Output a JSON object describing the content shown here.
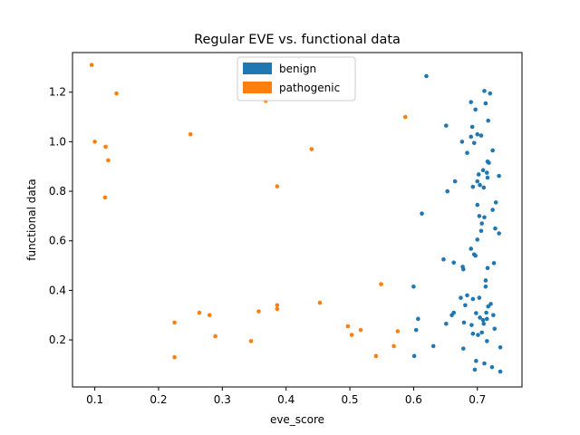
{
  "chart_data": {
    "type": "scatter",
    "title": "Regular EVE vs. functional data",
    "xlabel": "eve_score",
    "ylabel": "functional data",
    "xlim": [
      0.065,
      0.77
    ],
    "ylim": [
      0.01,
      1.36
    ],
    "xticks": [
      "0.1",
      "0.2",
      "0.3",
      "0.4",
      "0.5",
      "0.6",
      "0.7"
    ],
    "yticks": [
      "0.2",
      "0.4",
      "0.6",
      "0.8",
      "1.0",
      "1.2"
    ],
    "legend_position": "top-center",
    "grid": false,
    "series": [
      {
        "name": "benign",
        "color": "#1f77b4",
        "points": [
          [
            0.62,
            1.265
          ],
          [
            0.711,
            1.205
          ],
          [
            0.72,
            1.195
          ],
          [
            0.69,
            1.16
          ],
          [
            0.713,
            1.155
          ],
          [
            0.697,
            1.13
          ],
          [
            0.717,
            1.085
          ],
          [
            0.651,
            1.065
          ],
          [
            0.692,
            1.06
          ],
          [
            0.7,
            1.03
          ],
          [
            0.706,
            1.025
          ],
          [
            0.69,
            1.02
          ],
          [
            0.676,
            1.0
          ],
          [
            0.695,
            0.995
          ],
          [
            0.724,
            0.965
          ],
          [
            0.684,
            0.955
          ],
          [
            0.716,
            0.92
          ],
          [
            0.718,
            0.915
          ],
          [
            0.709,
            0.885
          ],
          [
            0.715,
            0.875
          ],
          [
            0.702,
            0.868
          ],
          [
            0.734,
            0.862
          ],
          [
            0.716,
            0.855
          ],
          [
            0.665,
            0.84
          ],
          [
            0.7,
            0.84
          ],
          [
            0.704,
            0.825
          ],
          [
            0.693,
            0.818
          ],
          [
            0.71,
            0.815
          ],
          [
            0.653,
            0.8
          ],
          [
            0.729,
            0.755
          ],
          [
            0.7,
            0.745
          ],
          [
            0.724,
            0.725
          ],
          [
            0.613,
            0.71
          ],
          [
            0.703,
            0.7
          ],
          [
            0.711,
            0.695
          ],
          [
            0.707,
            0.67
          ],
          [
            0.728,
            0.65
          ],
          [
            0.706,
            0.64
          ],
          [
            0.734,
            0.63
          ],
          [
            0.7,
            0.605
          ],
          [
            0.69,
            0.568
          ],
          [
            0.695,
            0.545
          ],
          [
            0.697,
            0.54
          ],
          [
            0.647,
            0.525
          ],
          [
            0.663,
            0.512
          ],
          [
            0.726,
            0.51
          ],
          [
            0.677,
            0.495
          ],
          [
            0.716,
            0.49
          ],
          [
            0.678,
            0.485
          ],
          [
            0.713,
            0.44
          ],
          [
            0.713,
            0.415
          ],
          [
            0.6,
            0.415
          ],
          [
            0.684,
            0.38
          ],
          [
            0.674,
            0.37
          ],
          [
            0.693,
            0.365
          ],
          [
            0.703,
            0.37
          ],
          [
            0.721,
            0.345
          ],
          [
            0.681,
            0.34
          ],
          [
            0.717,
            0.335
          ],
          [
            0.663,
            0.31
          ],
          [
            0.66,
            0.3
          ],
          [
            0.698,
            0.308
          ],
          [
            0.714,
            0.31
          ],
          [
            0.704,
            0.29
          ],
          [
            0.725,
            0.3
          ],
          [
            0.709,
            0.28
          ],
          [
            0.715,
            0.285
          ],
          [
            0.607,
            0.285
          ],
          [
            0.679,
            0.27
          ],
          [
            0.651,
            0.265
          ],
          [
            0.691,
            0.26
          ],
          [
            0.71,
            0.265
          ],
          [
            0.604,
            0.24
          ],
          [
            0.727,
            0.245
          ],
          [
            0.693,
            0.225
          ],
          [
            0.701,
            0.22
          ],
          [
            0.707,
            0.23
          ],
          [
            0.715,
            0.195
          ],
          [
            0.631,
            0.175
          ],
          [
            0.678,
            0.165
          ],
          [
            0.736,
            0.17
          ],
          [
            0.601,
            0.135
          ],
          [
            0.698,
            0.115
          ],
          [
            0.711,
            0.105
          ],
          [
            0.723,
            0.09
          ],
          [
            0.696,
            0.08
          ],
          [
            0.736,
            0.072
          ]
        ]
      },
      {
        "name": "pathogenic",
        "color": "#ff7f0e",
        "points": [
          [
            0.095,
            1.31
          ],
          [
            0.134,
            1.195
          ],
          [
            0.368,
            1.165
          ],
          [
            0.587,
            1.1
          ],
          [
            0.25,
            1.03
          ],
          [
            0.1,
            1.0
          ],
          [
            0.117,
            0.98
          ],
          [
            0.44,
            0.97
          ],
          [
            0.121,
            0.925
          ],
          [
            0.386,
            0.82
          ],
          [
            0.116,
            0.775
          ],
          [
            0.549,
            0.425
          ],
          [
            0.453,
            0.35
          ],
          [
            0.386,
            0.34
          ],
          [
            0.386,
            0.325
          ],
          [
            0.357,
            0.315
          ],
          [
            0.264,
            0.31
          ],
          [
            0.28,
            0.3
          ],
          [
            0.225,
            0.27
          ],
          [
            0.497,
            0.255
          ],
          [
            0.517,
            0.24
          ],
          [
            0.575,
            0.235
          ],
          [
            0.503,
            0.22
          ],
          [
            0.289,
            0.215
          ],
          [
            0.345,
            0.195
          ],
          [
            0.569,
            0.175
          ],
          [
            0.225,
            0.13
          ],
          [
            0.541,
            0.135
          ]
        ]
      }
    ]
  }
}
